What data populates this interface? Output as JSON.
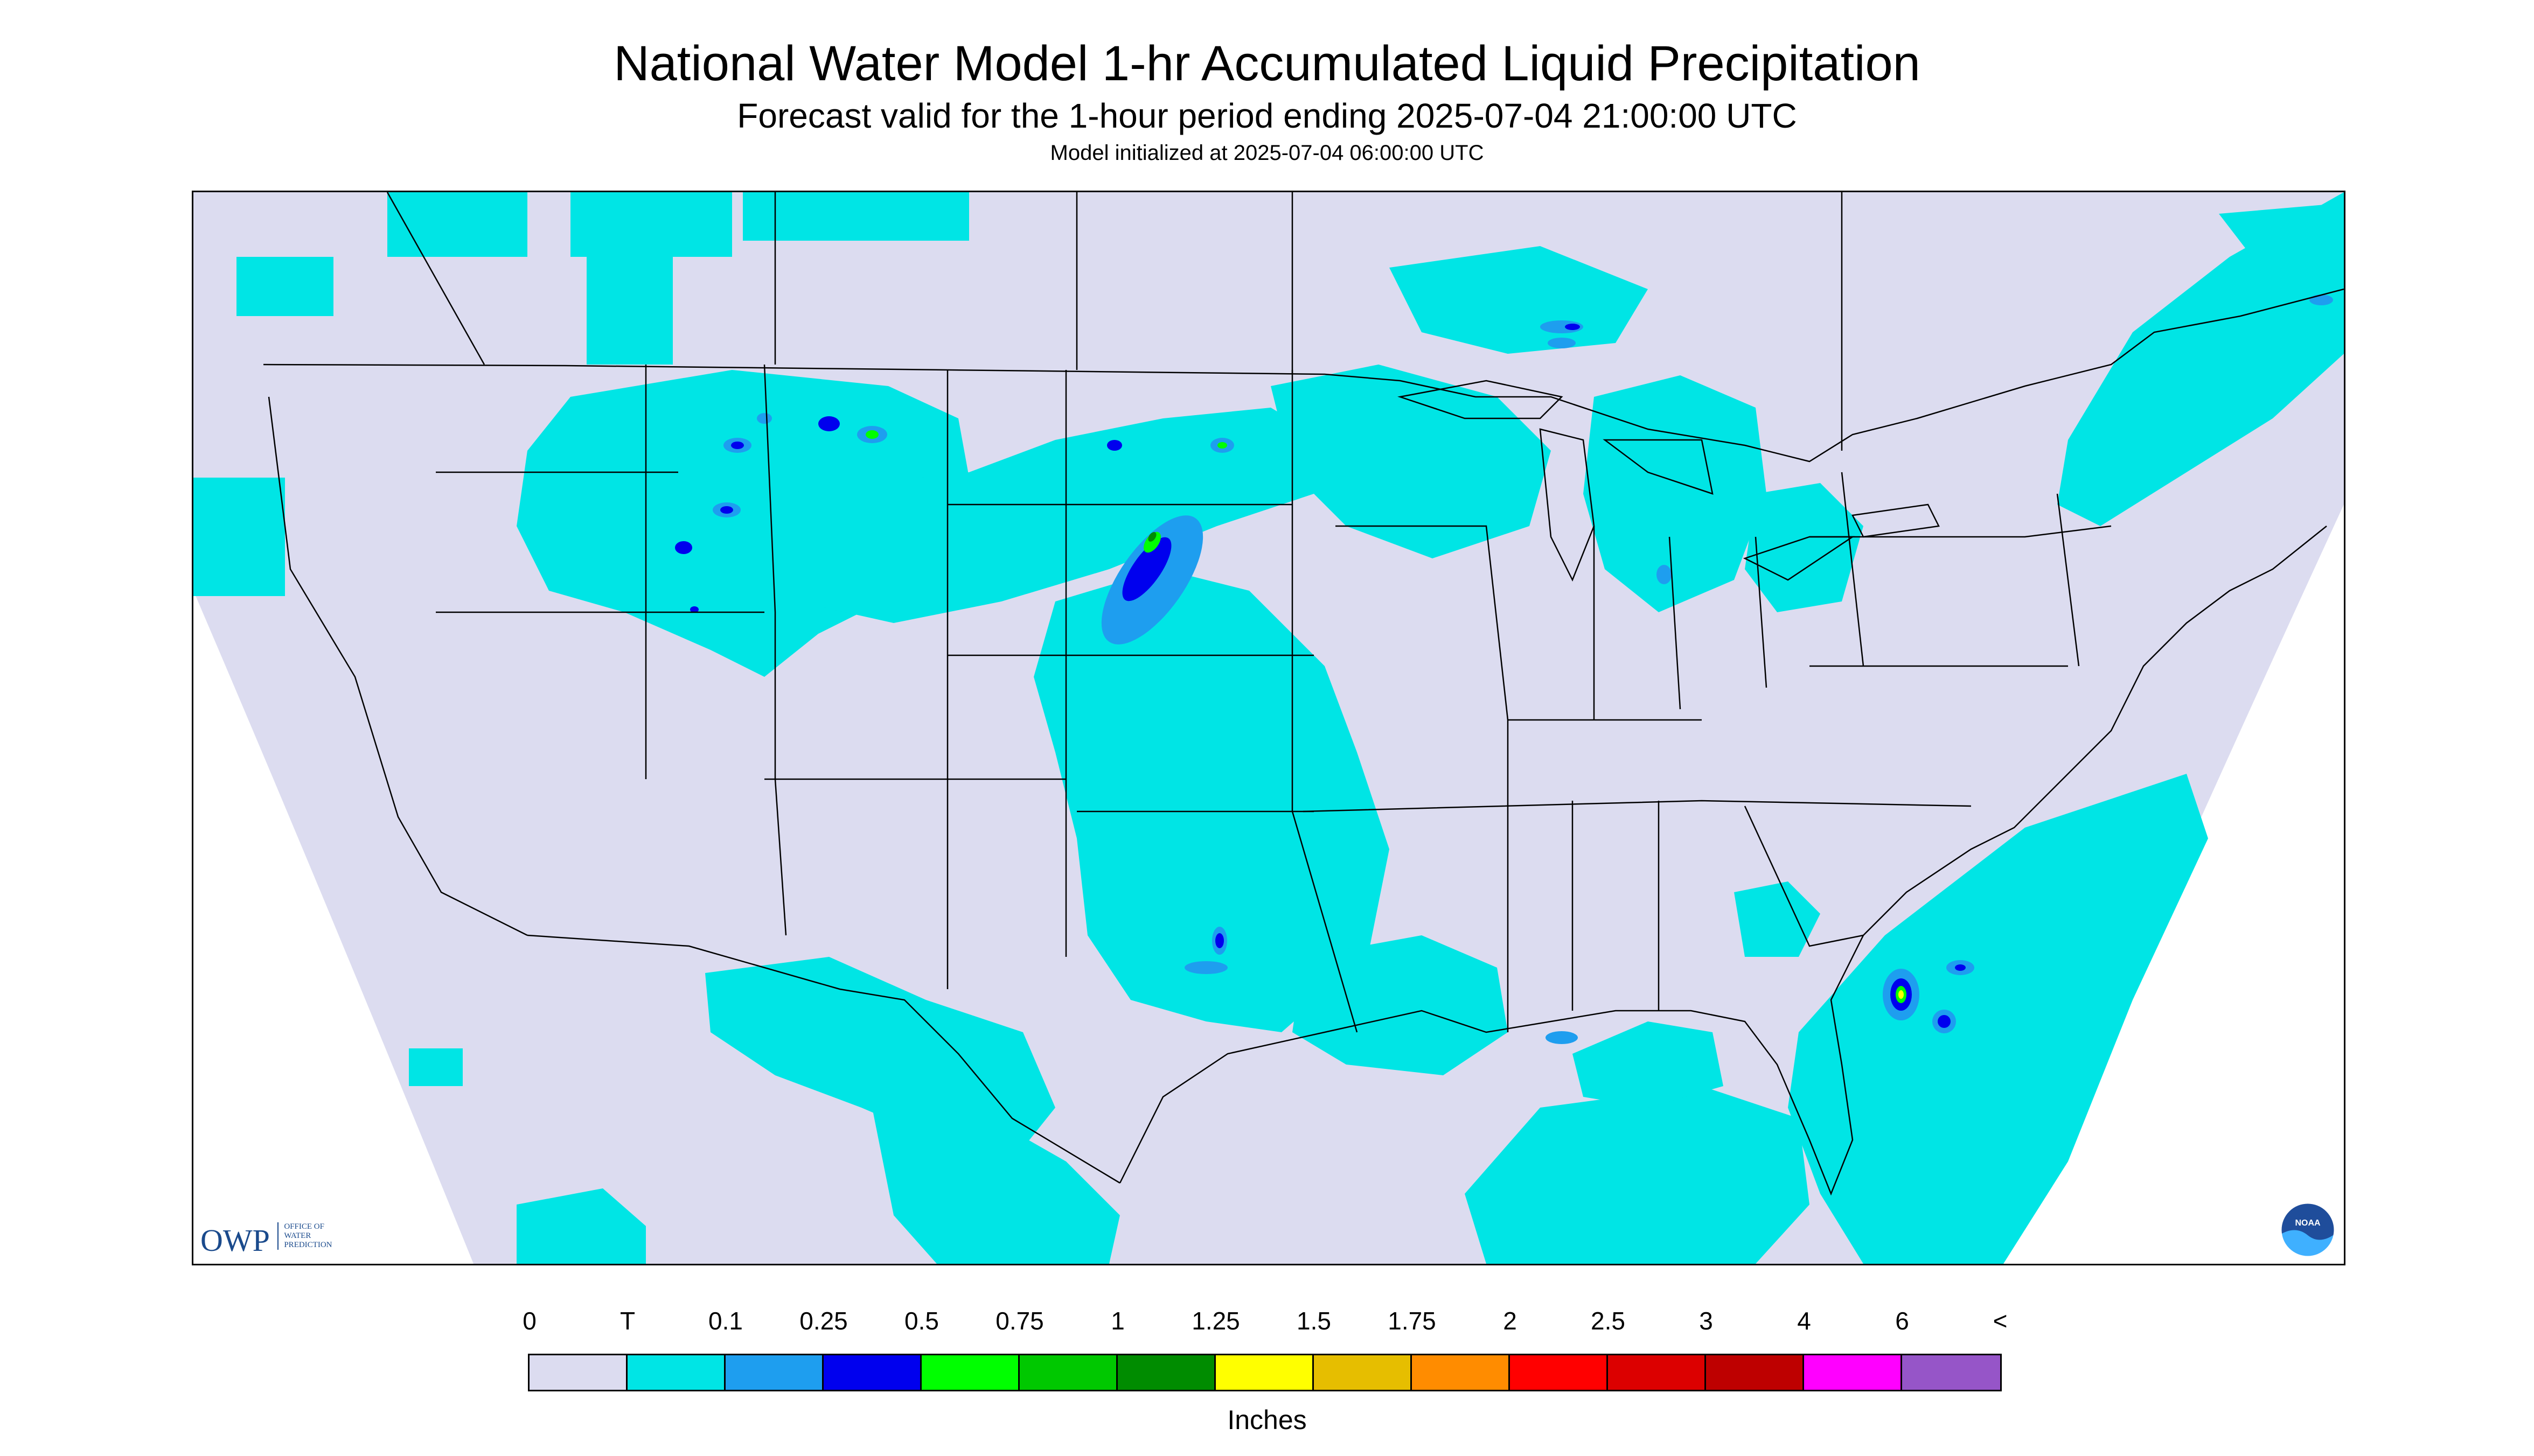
{
  "title": "National Water Model 1-hr Accumulated Liquid Precipitation",
  "subtitle": "Forecast valid for the 1-hour period ending 2025-07-04 21:00:00 UTC",
  "init_line": "Model initialized at 2025-07-04 06:00:00 UTC",
  "map": {
    "background_color": "#dcdcf0",
    "land_outside_color": "#ffffff",
    "boundary_color": "#000000"
  },
  "logos": {
    "owp": {
      "text": "OWP",
      "subtext_lines": [
        "OFFICE OF",
        "WATER",
        "PREDICTION"
      ]
    },
    "noaa": {
      "text": "NOAA"
    }
  },
  "legend": {
    "labels": [
      "0",
      "T",
      "0.1",
      "0.25",
      "0.5",
      "0.75",
      "1",
      "1.25",
      "1.5",
      "1.75",
      "2",
      "2.5",
      "3",
      "4",
      "6",
      "<"
    ],
    "colors": [
      "#dcdcf0",
      "#00e5e5",
      "#1e9eef",
      "#0000ee",
      "#00ff00",
      "#00c800",
      "#008c00",
      "#ffff00",
      "#e6be00",
      "#ff8c00",
      "#ff0000",
      "#dc0000",
      "#be0000",
      "#ff00ff",
      "#9655c8"
    ],
    "units": "Inches"
  },
  "precip_colors": {
    "trace": "#00e5e5",
    "light": "#1e9eef",
    "moderate": "#0000ee",
    "heavy": "#00ff00",
    "very_heavy": "#008c00",
    "extreme": "#ffff00"
  }
}
